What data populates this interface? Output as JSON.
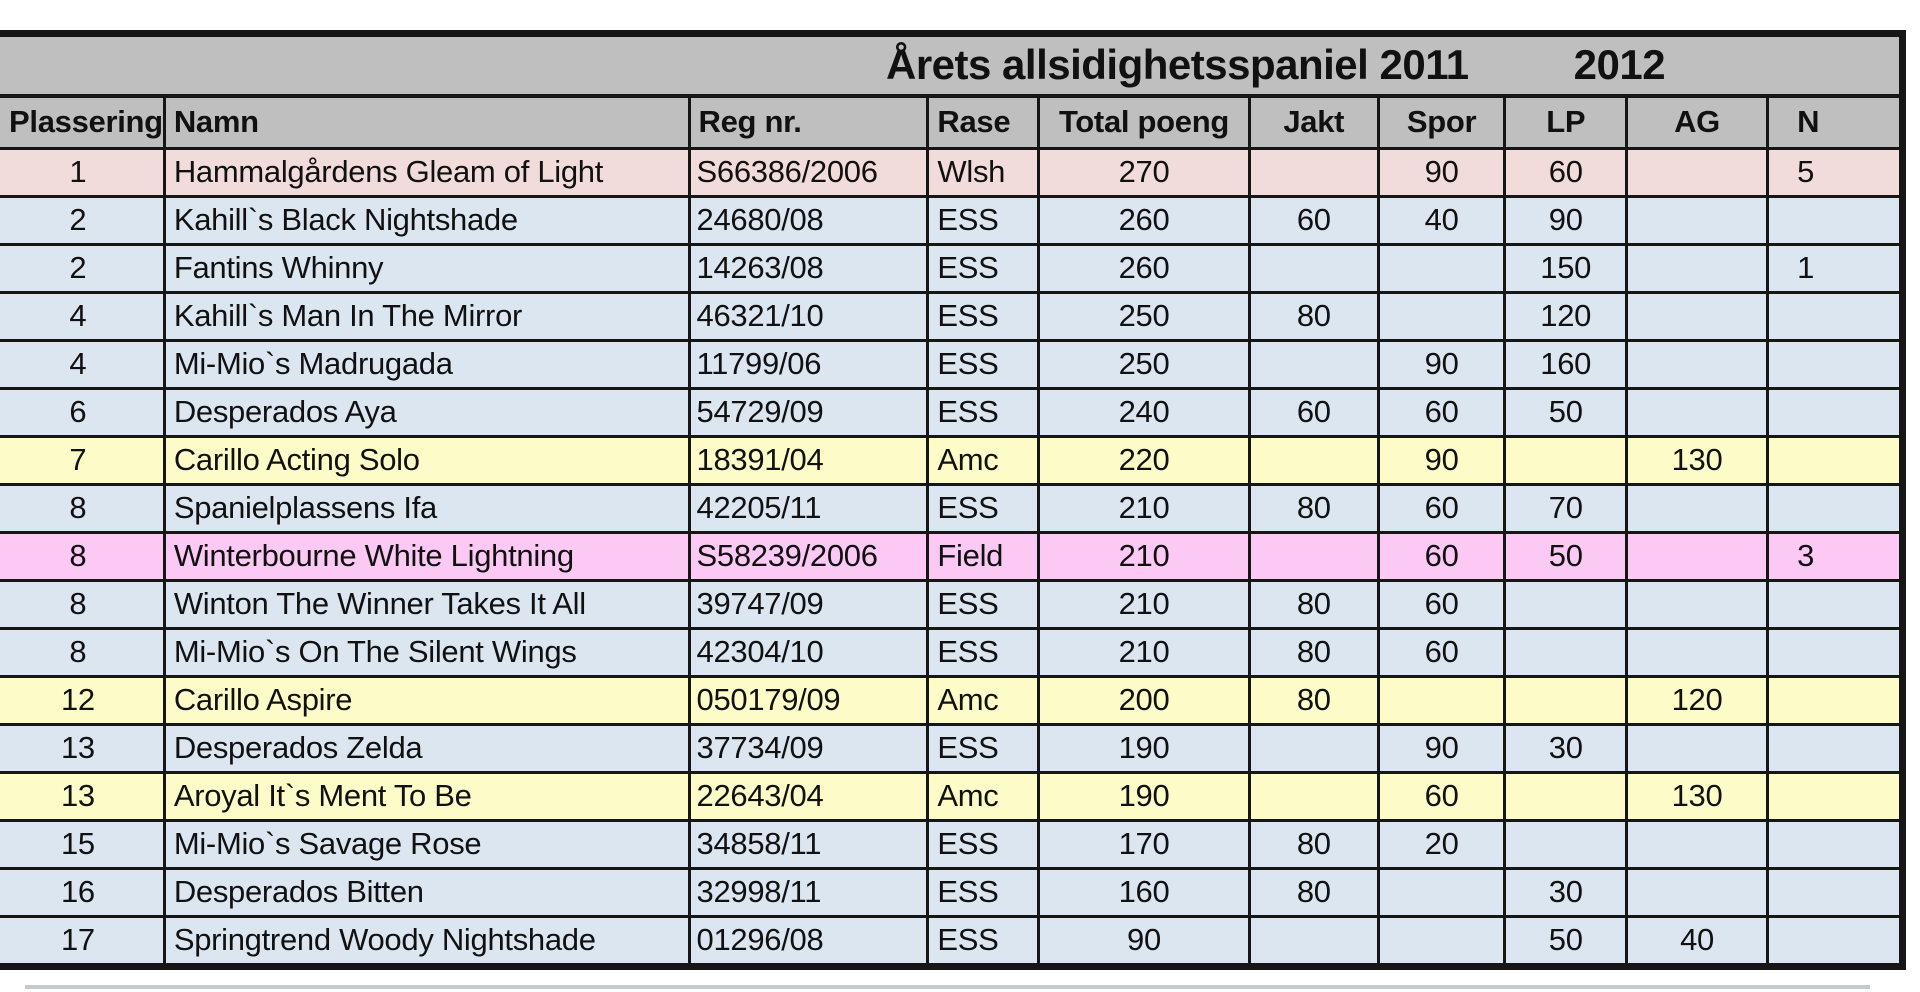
{
  "title": {
    "main": "Årets allsidighetsspaniel 2011",
    "secondary_year": "2012"
  },
  "table": {
    "columns": [
      "Plassering",
      "Namn",
      "Reg nr.",
      "Rase",
      "Total poeng",
      "Jakt",
      "Spor",
      "LP",
      "AG",
      "N"
    ],
    "note_last_column": "clipped at right screen edge; only partial header letter and leading digits visible",
    "rows": [
      {
        "plassering": "1",
        "namn": "Hammalgårdens Gleam of Light",
        "reg": "S66386/2006",
        "rase": "Wlsh",
        "total": "270",
        "jakt": "",
        "spor": "90",
        "lp": "60",
        "ag": "",
        "n": "5",
        "highlight": "rose"
      },
      {
        "plassering": "2",
        "namn": "Kahill`s Black Nightshade",
        "reg": "24680/08",
        "rase": "ESS",
        "total": "260",
        "jakt": "60",
        "spor": "40",
        "lp": "90",
        "ag": "",
        "n": "",
        "highlight": "blue"
      },
      {
        "plassering": "2",
        "namn": "Fantins Whinny",
        "reg": "14263/08",
        "rase": "ESS",
        "total": "260",
        "jakt": "",
        "spor": "",
        "lp": "150",
        "ag": "",
        "n": "1",
        "highlight": "blue"
      },
      {
        "plassering": "4",
        "namn": "Kahill`s Man In The Mirror",
        "reg": "46321/10",
        "rase": "ESS",
        "total": "250",
        "jakt": "80",
        "spor": "",
        "lp": "120",
        "ag": "",
        "n": "",
        "highlight": "blue"
      },
      {
        "plassering": "4",
        "namn": "Mi-Mio`s Madrugada",
        "reg": "11799/06",
        "rase": "ESS",
        "total": "250",
        "jakt": "",
        "spor": "90",
        "lp": "160",
        "ag": "",
        "n": "",
        "highlight": "blue"
      },
      {
        "plassering": "6",
        "namn": "Desperados Aya",
        "reg": "54729/09",
        "rase": "ESS",
        "total": "240",
        "jakt": "60",
        "spor": "60",
        "lp": "50",
        "ag": "",
        "n": "",
        "highlight": "blue"
      },
      {
        "plassering": "7",
        "namn": "Carillo Acting Solo",
        "reg": "18391/04",
        "rase": "Amc",
        "total": "220",
        "jakt": "",
        "spor": "90",
        "lp": "",
        "ag": "130",
        "n": "",
        "highlight": "yellow"
      },
      {
        "plassering": "8",
        "namn": "Spanielplassens Ifa",
        "reg": "42205/11",
        "rase": "ESS",
        "total": "210",
        "jakt": "80",
        "spor": "60",
        "lp": "70",
        "ag": "",
        "n": "",
        "highlight": "blue"
      },
      {
        "plassering": "8",
        "namn": "Winterbourne White Lightning",
        "reg": "S58239/2006",
        "rase": "Field",
        "total": "210",
        "jakt": "",
        "spor": "60",
        "lp": "50",
        "ag": "",
        "n": "3",
        "highlight": "magenta"
      },
      {
        "plassering": "8",
        "namn": "Winton The Winner Takes It All",
        "reg": "39747/09",
        "rase": "ESS",
        "total": "210",
        "jakt": "80",
        "spor": "60",
        "lp": "",
        "ag": "",
        "n": "",
        "highlight": "blue"
      },
      {
        "plassering": "8",
        "namn": "Mi-Mio`s On The Silent Wings",
        "reg": "42304/10",
        "rase": "ESS",
        "total": "210",
        "jakt": "80",
        "spor": "60",
        "lp": "",
        "ag": "",
        "n": "",
        "highlight": "blue"
      },
      {
        "plassering": "12",
        "namn": "Carillo Aspire",
        "reg": "050179/09",
        "rase": "Amc",
        "total": "200",
        "jakt": "80",
        "spor": "",
        "lp": "",
        "ag": "120",
        "n": "",
        "highlight": "yellow"
      },
      {
        "plassering": "13",
        "namn": "Desperados Zelda",
        "reg": "37734/09",
        "rase": "ESS",
        "total": "190",
        "jakt": "",
        "spor": "90",
        "lp": "30",
        "ag": "",
        "n": "",
        "highlight": "blue"
      },
      {
        "plassering": "13",
        "namn": "Aroyal It`s Ment To Be",
        "reg": "22643/04",
        "rase": "Amc",
        "total": "190",
        "jakt": "",
        "spor": "60",
        "lp": "",
        "ag": "130",
        "n": "",
        "highlight": "yellow"
      },
      {
        "plassering": "15",
        "namn": "Mi-Mio`s Savage Rose",
        "reg": "34858/11",
        "rase": "ESS",
        "total": "170",
        "jakt": "80",
        "spor": "20",
        "lp": "",
        "ag": "",
        "n": "",
        "highlight": "blue"
      },
      {
        "plassering": "16",
        "namn": "Desperados Bitten",
        "reg": "32998/11",
        "rase": "ESS",
        "total": "160",
        "jakt": "80",
        "spor": "",
        "lp": "30",
        "ag": "",
        "n": "",
        "highlight": "blue"
      },
      {
        "plassering": "17",
        "namn": "Springtrend Woody Nightshade",
        "reg": "01296/08",
        "rase": "ESS",
        "total": "90",
        "jakt": "",
        "spor": "",
        "lp": "50",
        "ag": "40",
        "n": "",
        "highlight": "blue"
      }
    ]
  },
  "colors": {
    "header_gray": "#bfbfbf",
    "row_blue": "#dce6f1",
    "row_rose": "#f2dcdb",
    "row_yellow": "#fdfcc8",
    "row_magenta": "#fcc9f5",
    "grid_border": "#161616",
    "text": "#111111"
  }
}
